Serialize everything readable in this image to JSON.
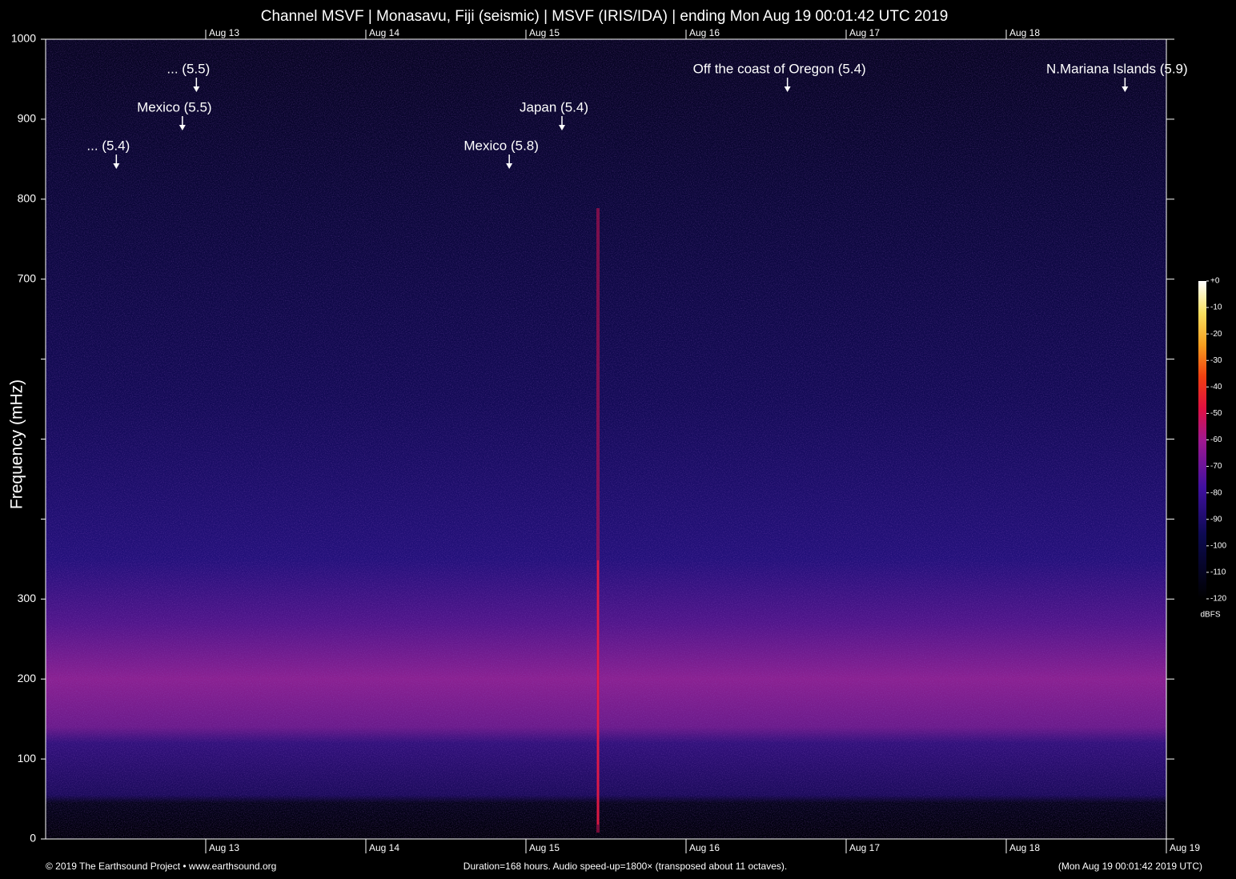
{
  "chart_data": {
    "type": "spectrogram",
    "title": "Channel MSVF | Monasavu, Fiji (seismic) | MSVF (IRIS/IDA) | ending Mon Aug 19 00:01:42 UTC 2019",
    "ylabel": "Frequency (mHz)",
    "ylim": [
      0,
      1000
    ],
    "yticks": [
      0,
      100,
      200,
      300,
      700,
      800,
      900,
      1000
    ],
    "yticks_unlabeled": [
      400,
      500,
      600
    ],
    "xlim": [
      0,
      168
    ],
    "xticks": [
      {
        "value": 24,
        "label": "Aug 13"
      },
      {
        "value": 48,
        "label": "Aug 14"
      },
      {
        "value": 72,
        "label": "Aug 15"
      },
      {
        "value": 96,
        "label": "Aug 16"
      },
      {
        "value": 120,
        "label": "Aug 17"
      },
      {
        "value": 144,
        "label": "Aug 18"
      },
      {
        "value": 168,
        "label": "Aug 19"
      }
    ],
    "annotations": [
      {
        "text": "... (5.4)",
        "x": 10.6
      },
      {
        "text": "Mexico (5.5)",
        "x": 20.5
      },
      {
        "text": "... (5.5)",
        "x": 22.6
      },
      {
        "text": "Mexico (5.8)",
        "x": 69.5
      },
      {
        "text": "Japan (5.4)",
        "x": 77.4
      },
      {
        "text": "Off the coast of Oregon (5.4)",
        "x": 111.2
      },
      {
        "text": "N.Mariana Islands (5.9)",
        "x": 161.8
      }
    ],
    "colorbar": {
      "label": "dBFS",
      "lim": [
        -120,
        0
      ],
      "ticks": [
        {
          "value": 0,
          "label": "+0"
        },
        -10,
        -20,
        -30,
        -40,
        -50,
        -60,
        -70,
        -80,
        -90,
        -100,
        -110,
        -120
      ]
    },
    "footer_left": "© 2019 The Earthsound Project • www.earthsound.org",
    "footer_center": "Duration=168 hours. Audio speed-up=1800× (transposed about 11 octaves).",
    "footer_right": "(Mon Aug 19 00:01:42 2019 UTC)"
  }
}
